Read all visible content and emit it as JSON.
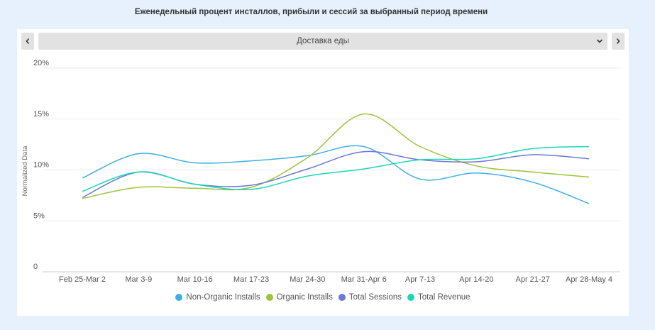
{
  "page": {
    "title": "Еженедельный процент инсталлов, прибыли и сессий за выбранный период времени"
  },
  "selector": {
    "value": "Доставка еды",
    "prev_icon": "chevron-left-icon",
    "next_icon": "chevron-right-icon",
    "dropdown_icon": "chevron-down-icon"
  },
  "chart_data": {
    "type": "line",
    "title": "",
    "xlabel": "",
    "ylabel": "Normalized Data",
    "ylim": [
      0,
      20
    ],
    "y_ticks": [
      0,
      5,
      10,
      15,
      20
    ],
    "y_tick_labels": [
      "0",
      "5%",
      "10%",
      "15%",
      "20%"
    ],
    "grid": true,
    "legend_position": "bottom",
    "categories": [
      "Feb 25-Mar 2",
      "Mar 3-9",
      "Mar 10-16",
      "Mar 17-23",
      "Mar 24-30",
      "Mar 31-Apr 6",
      "Apr 7-13",
      "Apr 14-20",
      "Apr 21-27",
      "Apr 28-May 4"
    ],
    "series": [
      {
        "name": "Non-Organic Installs",
        "color": "#3fb0e6",
        "values": [
          9.2,
          11.6,
          10.7,
          10.9,
          11.4,
          12.3,
          9.1,
          9.7,
          8.8,
          6.7
        ]
      },
      {
        "name": "Organic Installs",
        "color": "#9ac53a",
        "values": [
          7.2,
          8.3,
          8.2,
          8.3,
          11.2,
          15.5,
          12.3,
          10.4,
          9.8,
          9.3
        ]
      },
      {
        "name": "Total Sessions",
        "color": "#6a78d6",
        "values": [
          7.3,
          9.8,
          8.6,
          8.5,
          10.1,
          11.8,
          11.0,
          10.8,
          11.5,
          11.1
        ]
      },
      {
        "name": "Total Revenue",
        "color": "#1dd6b5",
        "values": [
          7.9,
          9.8,
          8.6,
          8.1,
          9.4,
          10.1,
          11.0,
          11.1,
          12.1,
          12.3
        ]
      }
    ]
  }
}
